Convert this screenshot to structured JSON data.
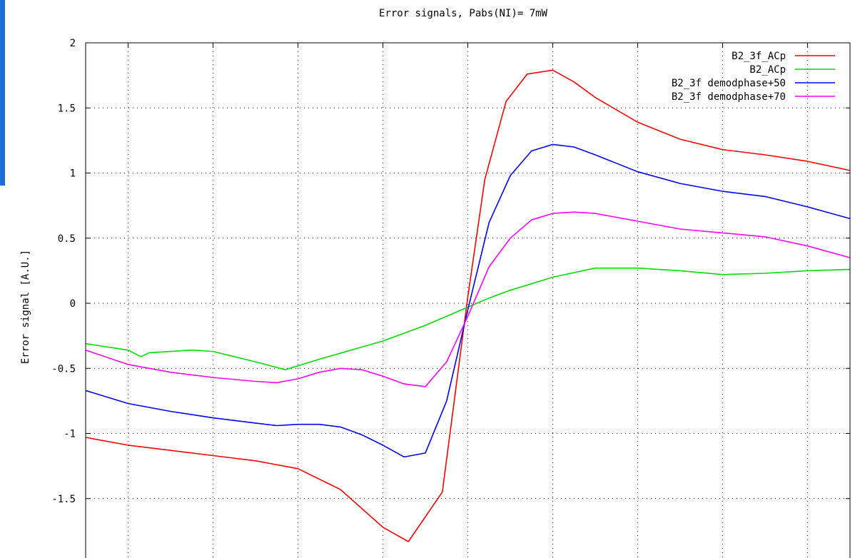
{
  "chart_data": {
    "type": "line",
    "title": "Error signals, Pabs(NI)= 7mW",
    "xlabel": "",
    "ylabel": "Error signal [A.U.]",
    "ylim": [
      -2,
      2
    ],
    "xlim": [
      -9,
      9
    ],
    "yticks": [
      {
        "value": 2,
        "label": "2"
      },
      {
        "value": 1.5,
        "label": "1.5"
      },
      {
        "value": 1,
        "label": "1"
      },
      {
        "value": 0.5,
        "label": "0.5"
      },
      {
        "value": 0,
        "label": "0"
      },
      {
        "value": -0.5,
        "label": "-0.5"
      },
      {
        "value": -1,
        "label": "-1"
      },
      {
        "value": -1.5,
        "label": "-1.5"
      }
    ],
    "xgrid": [
      -8,
      -6,
      -4,
      -2,
      0,
      2,
      4,
      6,
      8
    ],
    "grid": true,
    "legend": "top-right",
    "series": [
      {
        "name": "B2_3f_ACp",
        "color": "#ff0000",
        "x": [
          -9,
          -8,
          -7,
          -6,
          -5,
          -4,
          -3,
          -2,
          -1.4,
          -0.6,
          0,
          0.4,
          0.9,
          1.4,
          2,
          2.5,
          3,
          4,
          5,
          6,
          7,
          8,
          9
        ],
        "y": [
          -1.03,
          -1.09,
          -1.13,
          -1.17,
          -1.21,
          -1.27,
          -1.43,
          -1.72,
          -1.83,
          -1.45,
          0.05,
          0.95,
          1.55,
          1.76,
          1.79,
          1.7,
          1.58,
          1.39,
          1.26,
          1.18,
          1.14,
          1.09,
          1.02
        ]
      },
      {
        "name": "B2_ACp",
        "color": "#00dd00",
        "x": [
          -9,
          -8,
          -7.7,
          -7.5,
          -6.5,
          -6,
          -5,
          -4.3,
          -3.5,
          -2,
          -1,
          0,
          0.5,
          1,
          2,
          3,
          4,
          5,
          6,
          7,
          8,
          9
        ],
        "y": [
          -0.31,
          -0.36,
          -0.41,
          -0.38,
          -0.36,
          -0.37,
          -0.45,
          -0.51,
          -0.43,
          -0.29,
          -0.17,
          -0.03,
          0.04,
          0.1,
          0.2,
          0.27,
          0.27,
          0.25,
          0.22,
          0.23,
          0.25,
          0.26
        ]
      },
      {
        "name": "B2_3f demodphase+50",
        "color": "#0000ff",
        "x": [
          -9,
          -8,
          -7,
          -6,
          -5,
          -4.5,
          -4,
          -3.5,
          -3,
          -2.5,
          -2,
          -1.5,
          -1,
          -0.5,
          0,
          0.5,
          1,
          1.5,
          2,
          2.5,
          3,
          4,
          5,
          6,
          7,
          8,
          9
        ],
        "y": [
          -0.67,
          -0.77,
          -0.83,
          -0.88,
          -0.92,
          -0.94,
          -0.93,
          -0.93,
          -0.95,
          -1.01,
          -1.09,
          -1.18,
          -1.15,
          -0.75,
          -0.05,
          0.62,
          0.98,
          1.17,
          1.22,
          1.2,
          1.14,
          1.01,
          0.92,
          0.86,
          0.82,
          0.74,
          0.65
        ]
      },
      {
        "name": "B2_3f demodphase+70",
        "color": "#ff00ff",
        "x": [
          -9,
          -8,
          -7,
          -6,
          -5,
          -4.5,
          -4,
          -3.5,
          -3,
          -2.5,
          -2,
          -1.5,
          -1,
          -0.5,
          0,
          0.5,
          1,
          1.5,
          2,
          2.5,
          3,
          4,
          5,
          6,
          7,
          8,
          9
        ],
        "y": [
          -0.36,
          -0.47,
          -0.53,
          -0.57,
          -0.6,
          -0.61,
          -0.58,
          -0.53,
          -0.5,
          -0.51,
          -0.56,
          -0.62,
          -0.64,
          -0.45,
          -0.1,
          0.28,
          0.5,
          0.64,
          0.69,
          0.7,
          0.69,
          0.63,
          0.57,
          0.54,
          0.51,
          0.44,
          0.35
        ]
      }
    ]
  }
}
